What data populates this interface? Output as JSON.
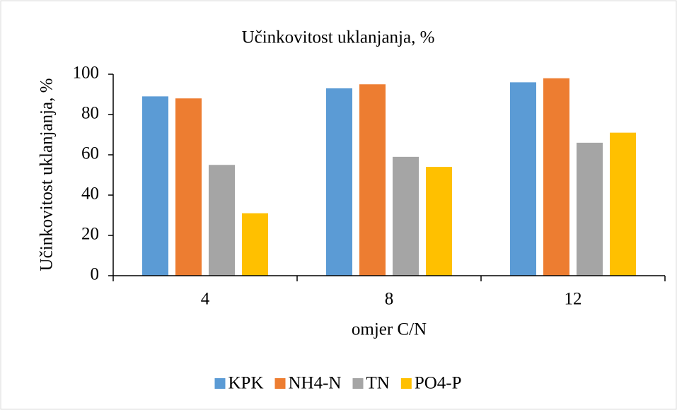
{
  "chart_data": {
    "type": "bar",
    "title": "Učinkovitost uklanjanja, %",
    "x_label": "omjer C/N",
    "y_label": "Učinkovitost uklanjanja, %",
    "categories": [
      "4",
      "8",
      "12"
    ],
    "series": [
      {
        "name": "KPK",
        "color": "#5b9bd5",
        "values": [
          89,
          93,
          96
        ]
      },
      {
        "name": "NH4-N",
        "color": "#ed7d31",
        "values": [
          88,
          95,
          98
        ]
      },
      {
        "name": "TN",
        "color": "#a5a5a5",
        "values": [
          55,
          59,
          66
        ]
      },
      {
        "name": "PO4-P",
        "color": "#ffc000",
        "values": [
          31,
          54,
          71
        ]
      }
    ],
    "ylim": [
      0,
      100
    ],
    "yticks": [
      0,
      20,
      40,
      60,
      80,
      100
    ],
    "grid": false,
    "legend": "bottom"
  }
}
